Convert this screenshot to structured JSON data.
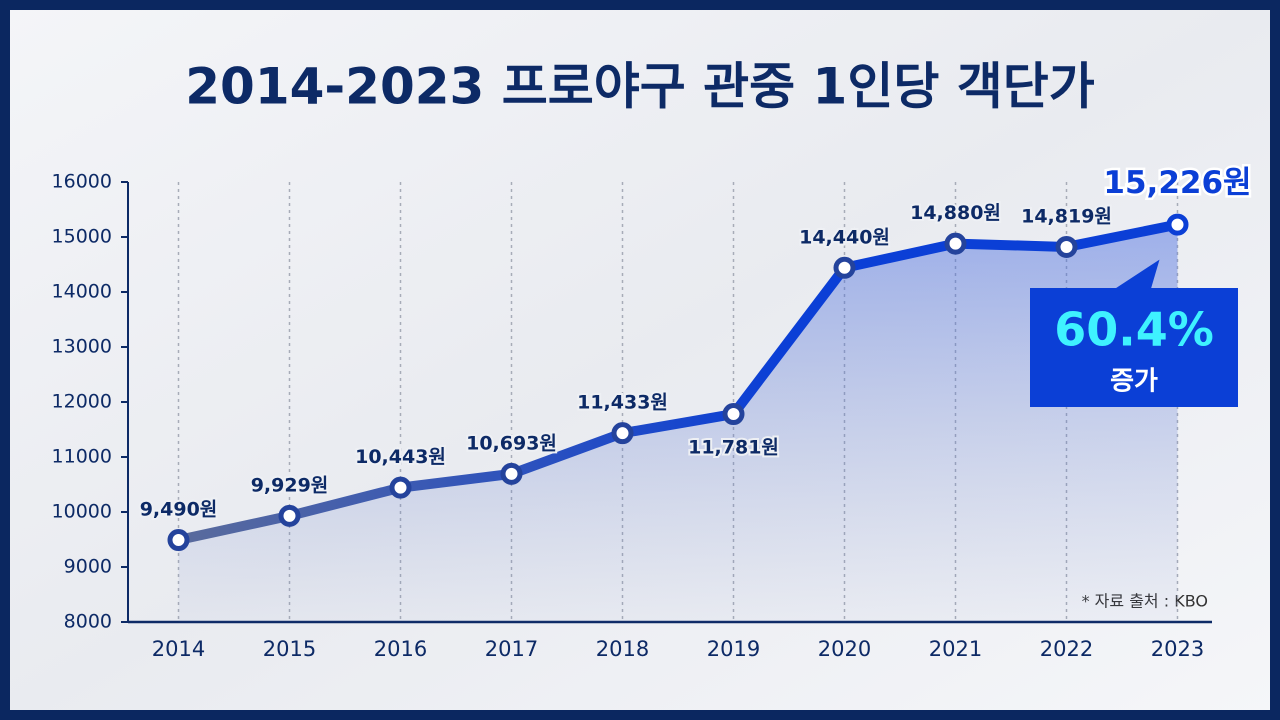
{
  "chart_data": {
    "type": "line",
    "title": "2014-2023 프로야구 관중 1인당 객단가",
    "categories": [
      "2014",
      "2015",
      "2016",
      "2017",
      "2018",
      "2019",
      "2020",
      "2021",
      "2022",
      "2023"
    ],
    "values": [
      9490,
      9929,
      10443,
      10693,
      11433,
      11781,
      14440,
      14880,
      14819,
      15226
    ],
    "value_labels": [
      "9,490원",
      "9,929원",
      "10,443원",
      "10,693원",
      "11,433원",
      "11,781원",
      "14,440원",
      "14,880원",
      "14,819원",
      "15,226원"
    ],
    "color": "#0b3fd6",
    "ylim": [
      8000,
      16000
    ],
    "yticks": [
      8000,
      9000,
      10000,
      11000,
      12000,
      13000,
      14000,
      15000,
      16000
    ],
    "grid": true,
    "annotation": {
      "value": "60.4%",
      "text": "증가"
    },
    "source": "* 자료 출처 : KBO"
  }
}
